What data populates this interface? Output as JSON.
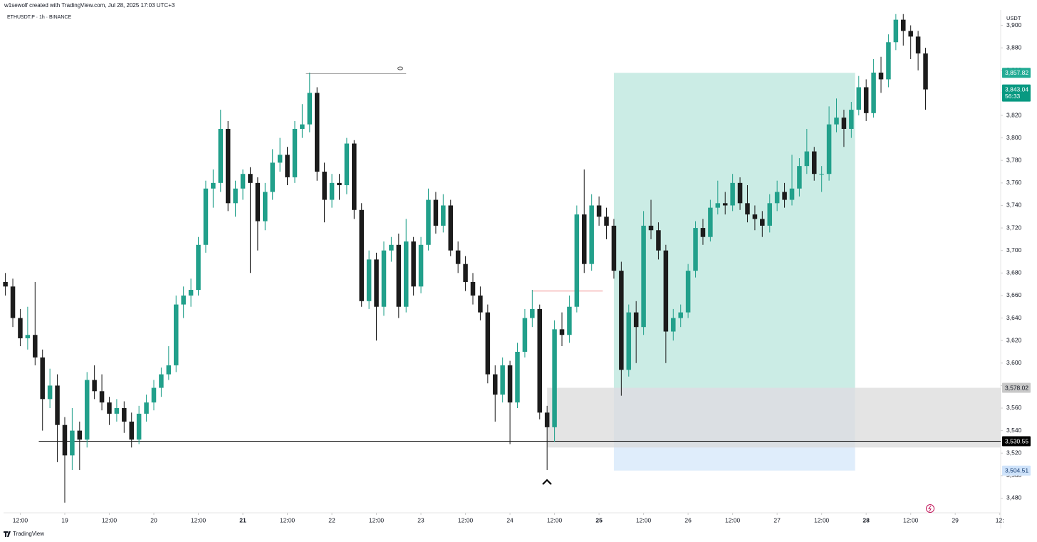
{
  "chart_data": {
    "type": "candlestick",
    "credit": "w1sewolf created with TradingView.com, Jul 28, 2025 17:03 UTC+3",
    "title": "ETHUSDT.P · 1h · BINANCE",
    "currency": "USDT",
    "brand": "TradingView",
    "up_color": "#22a08b",
    "down_color": "#1c1c1c",
    "grid": false,
    "x": [
      "18 08:00",
      "18 10:00",
      "18 12:00",
      "18 14:00",
      "18 16:00",
      "18 18:00",
      "18 20:00",
      "18 22:00",
      "19 00:00",
      "19 02:00",
      "19 04:00",
      "19 06:00",
      "19 08:00",
      "19 10:00",
      "19 12:00",
      "19 14:00",
      "19 16:00",
      "19 18:00",
      "19 20:00",
      "19 22:00",
      "20 00:00",
      "20 02:00",
      "20 04:00",
      "20 06:00",
      "20 08:00",
      "20 10:00",
      "20 12:00",
      "20 14:00",
      "20 16:00",
      "20 18:00",
      "20 20:00",
      "20 22:00",
      "21 00:00",
      "21 02:00",
      "21 04:00",
      "21 06:00",
      "21 08:00",
      "21 10:00",
      "21 12:00",
      "21 14:00",
      "21 16:00",
      "21 18:00",
      "21 20:00",
      "21 22:00",
      "22 00:00",
      "22 02:00",
      "22 04:00",
      "22 06:00",
      "22 08:00",
      "22 10:00",
      "22 12:00",
      "22 14:00",
      "22 16:00",
      "22 18:00",
      "22 20:00",
      "22 22:00",
      "23 00:00",
      "23 02:00",
      "23 04:00",
      "23 06:00",
      "23 08:00",
      "23 10:00",
      "23 12:00",
      "23 14:00",
      "23 16:00",
      "23 18:00",
      "23 20:00",
      "23 22:00",
      "24 00:00",
      "24 02:00",
      "24 04:00",
      "24 06:00",
      "24 08:00",
      "24 10:00",
      "24 12:00",
      "24 14:00",
      "24 16:00",
      "24 18:00",
      "24 20:00",
      "24 22:00",
      "25 00:00",
      "25 02:00",
      "25 04:00",
      "25 06:00",
      "25 08:00",
      "25 10:00",
      "25 12:00",
      "25 14:00",
      "25 16:00",
      "25 18:00",
      "25 20:00",
      "25 22:00",
      "26 00:00",
      "26 02:00",
      "26 04:00",
      "26 06:00",
      "26 08:00",
      "26 10:00",
      "26 12:00",
      "26 14:00",
      "26 16:00",
      "26 18:00",
      "26 20:00",
      "26 22:00",
      "27 00:00",
      "27 02:00",
      "27 04:00",
      "27 06:00",
      "27 08:00",
      "27 10:00",
      "27 12:00",
      "27 14:00",
      "27 16:00",
      "27 18:00",
      "27 20:00",
      "27 22:00",
      "28 00:00",
      "28 02:00",
      "28 04:00",
      "28 06:00",
      "28 08:00",
      "28 10:00",
      "28 12:00",
      "28 14:00",
      "28 16:00"
    ],
    "open": [
      3672,
      3668,
      3640,
      3622,
      3625,
      3605,
      3568,
      3580,
      3545,
      3518,
      3540,
      3532,
      3585,
      3575,
      3565,
      3555,
      3560,
      3548,
      3532,
      3555,
      3565,
      3578,
      3590,
      3598,
      3652,
      3660,
      3665,
      3705,
      3755,
      3760,
      3808,
      3742,
      3755,
      3768,
      3760,
      3726,
      3752,
      3778,
      3785,
      3765,
      3808,
      3812,
      3840,
      3770,
      3745,
      3760,
      3758,
      3795,
      3736,
      3655,
      3692,
      3650,
      3700,
      3705,
      3650,
      3708,
      3668,
      3705,
      3745,
      3722,
      3740,
      3700,
      3688,
      3672,
      3660,
      3645,
      3590,
      3572,
      3598,
      3565,
      3610,
      3640,
      3648,
      3556,
      3543,
      3630,
      3625,
      3650,
      3732,
      3688,
      3740,
      3730,
      3722,
      3682,
      3594,
      3645,
      3632,
      3722,
      3718,
      3700,
      3628,
      3640,
      3645,
      3682,
      3720,
      3712,
      3738,
      3742,
      3740,
      3760,
      3742,
      3732,
      3728,
      3722,
      3742,
      3752,
      3745,
      3755,
      3775,
      3788,
      3768,
      3768,
      3812,
      3818,
      3808,
      3825,
      3845,
      3822,
      3858,
      3852,
      3885,
      3905,
      3895,
      3890,
      3875
    ],
    "high": [
      3680,
      3675,
      3648,
      3650,
      3672,
      3612,
      3595,
      3590,
      3552,
      3560,
      3548,
      3592,
      3598,
      3590,
      3570,
      3568,
      3566,
      3556,
      3562,
      3572,
      3585,
      3596,
      3615,
      3660,
      3668,
      3675,
      3712,
      3762,
      3772,
      3825,
      3815,
      3762,
      3772,
      3774,
      3765,
      3760,
      3790,
      3800,
      3792,
      3815,
      3830,
      3858,
      3845,
      3778,
      3768,
      3768,
      3800,
      3798,
      3742,
      3700,
      3698,
      3708,
      3712,
      3715,
      3728,
      3712,
      3712,
      3755,
      3752,
      3750,
      3745,
      3708,
      3695,
      3680,
      3668,
      3652,
      3598,
      3605,
      3602,
      3618,
      3648,
      3665,
      3652,
      3562,
      3638,
      3645,
      3660,
      3740,
      3772,
      3750,
      3748,
      3738,
      3728,
      3690,
      3652,
      3655,
      3735,
      3745,
      3725,
      3705,
      3648,
      3652,
      3688,
      3726,
      3728,
      3745,
      3762,
      3752,
      3768,
      3765,
      3758,
      3740,
      3735,
      3750,
      3762,
      3760,
      3785,
      3782,
      3808,
      3792,
      3775,
      3828,
      3835,
      3825,
      3832,
      3855,
      3852,
      3870,
      3872,
      3892,
      3910,
      3910,
      3900,
      3895,
      3880
    ],
    "low": [
      3660,
      3632,
      3615,
      3612,
      3598,
      3540,
      3560,
      3512,
      3476,
      3505,
      3505,
      3525,
      3568,
      3558,
      3545,
      3548,
      3538,
      3525,
      3528,
      3548,
      3558,
      3570,
      3585,
      3592,
      3640,
      3650,
      3660,
      3698,
      3738,
      3752,
      3735,
      3730,
      3745,
      3680,
      3700,
      3718,
      3745,
      3770,
      3758,
      3760,
      3800,
      3805,
      3762,
      3725,
      3738,
      3745,
      3750,
      3728,
      3650,
      3648,
      3620,
      3642,
      3690,
      3640,
      3645,
      3660,
      3662,
      3700,
      3715,
      3716,
      3695,
      3680,
      3664,
      3652,
      3638,
      3582,
      3548,
      3565,
      3528,
      3560,
      3605,
      3632,
      3550,
      3505,
      3530,
      3615,
      3618,
      3645,
      3680,
      3682,
      3722,
      3710,
      3675,
      3571,
      3588,
      3600,
      3625,
      3710,
      3692,
      3600,
      3620,
      3632,
      3640,
      3676,
      3705,
      3708,
      3732,
      3732,
      3735,
      3736,
      3725,
      3718,
      3712,
      3716,
      3735,
      3738,
      3740,
      3748,
      3768,
      3762,
      3752,
      3762,
      3805,
      3792,
      3800,
      3820,
      3815,
      3818,
      3840,
      3845,
      3878,
      3882,
      3870,
      3860,
      3825
    ],
    "close": [
      3668,
      3640,
      3622,
      3625,
      3605,
      3568,
      3580,
      3545,
      3518,
      3540,
      3532,
      3585,
      3575,
      3565,
      3555,
      3560,
      3548,
      3532,
      3555,
      3565,
      3578,
      3590,
      3598,
      3652,
      3660,
      3665,
      3705,
      3755,
      3760,
      3808,
      3742,
      3755,
      3768,
      3760,
      3726,
      3752,
      3778,
      3785,
      3765,
      3808,
      3812,
      3840,
      3770,
      3745,
      3760,
      3758,
      3795,
      3736,
      3655,
      3692,
      3650,
      3700,
      3705,
      3650,
      3708,
      3668,
      3705,
      3745,
      3722,
      3740,
      3700,
      3688,
      3672,
      3660,
      3645,
      3590,
      3572,
      3598,
      3565,
      3610,
      3640,
      3648,
      3556,
      3543,
      3630,
      3625,
      3650,
      3732,
      3688,
      3740,
      3730,
      3722,
      3682,
      3594,
      3645,
      3632,
      3722,
      3718,
      3700,
      3628,
      3640,
      3645,
      3682,
      3720,
      3712,
      3738,
      3742,
      3740,
      3760,
      3742,
      3732,
      3728,
      3722,
      3742,
      3752,
      3745,
      3755,
      3775,
      3788,
      3768,
      3768,
      3812,
      3818,
      3808,
      3825,
      3845,
      3822,
      3858,
      3852,
      3885,
      3905,
      3895,
      3890,
      3875,
      3843.04
    ],
    "last_price_label": "3,843.04",
    "countdown": "56:33",
    "last_price_color": "#089981",
    "xlim": [
      "18 07:30",
      "29 12:15"
    ],
    "ylim": [
      3467,
      3913
    ],
    "xticks": [
      {
        "value": "18 12:00",
        "label": "12:00"
      },
      {
        "value": "19 00:00",
        "label": "19"
      },
      {
        "value": "19 12:00",
        "label": "12:00"
      },
      {
        "value": "20 00:00",
        "label": "20"
      },
      {
        "value": "20 12:00",
        "label": "12:00"
      },
      {
        "value": "21 00:00",
        "label": "21",
        "bold": true
      },
      {
        "value": "21 12:00",
        "label": "12:00"
      },
      {
        "value": "22 00:00",
        "label": "22"
      },
      {
        "value": "22 12:00",
        "label": "12:00"
      },
      {
        "value": "23 00:00",
        "label": "23"
      },
      {
        "value": "23 12:00",
        "label": "12:00"
      },
      {
        "value": "24 00:00",
        "label": "24"
      },
      {
        "value": "24 12:00",
        "label": "12:00"
      },
      {
        "value": "25 00:00",
        "label": "25",
        "bold": true
      },
      {
        "value": "25 12:00",
        "label": "12:00"
      },
      {
        "value": "26 00:00",
        "label": "26"
      },
      {
        "value": "26 12:00",
        "label": "12:00"
      },
      {
        "value": "27 00:00",
        "label": "27"
      },
      {
        "value": "27 12:00",
        "label": "12:00"
      },
      {
        "value": "28 00:00",
        "label": "28",
        "bold": true
      },
      {
        "value": "28 12:00",
        "label": "12:00"
      },
      {
        "value": "29 00:00",
        "label": "29"
      },
      {
        "value": "29 12:00",
        "label": "12:"
      }
    ],
    "yticks": [
      {
        "value": 3480,
        "label": "3,480"
      },
      {
        "value": 3500,
        "label": "3,500"
      },
      {
        "value": 3520,
        "label": "3,520"
      },
      {
        "value": 3540,
        "label": "3,540"
      },
      {
        "value": 3560,
        "label": "3,560"
      },
      {
        "value": 3580,
        "label": "3,580"
      },
      {
        "value": 3600,
        "label": "3,600"
      },
      {
        "value": 3620,
        "label": "3,620"
      },
      {
        "value": 3640,
        "label": "3,640"
      },
      {
        "value": 3660,
        "label": "3,660"
      },
      {
        "value": 3680,
        "label": "3,680"
      },
      {
        "value": 3700,
        "label": "3,700"
      },
      {
        "value": 3720,
        "label": "3,720"
      },
      {
        "value": 3740,
        "label": "3,740"
      },
      {
        "value": 3760,
        "label": "3,760"
      },
      {
        "value": 3780,
        "label": "3,780"
      },
      {
        "value": 3800,
        "label": "3,800"
      },
      {
        "value": 3820,
        "label": "3,820"
      },
      {
        "value": 3840,
        "label": "3,840"
      },
      {
        "value": 3860,
        "label": "3,860"
      },
      {
        "value": 3880,
        "label": "3,880"
      },
      {
        "value": 3900,
        "label": "3,900"
      }
    ],
    "rectangle": {
      "start": "24 10:00",
      "top": {
        "value": 3578.02,
        "label": "3,578.02"
      },
      "bottom": 3525,
      "color": "#d9d9d9",
      "label_color": "#c8c8c8"
    },
    "position": {
      "start": "25 04:00",
      "end": "27 21:00",
      "target": {
        "value": 3857.82,
        "label": "3,857.82"
      },
      "stop": {
        "value": 3504.51,
        "label": "3,504.51"
      },
      "profit_color": "#b9e6dc",
      "loss_color": "#dcebfb",
      "target_label_color": "#22ab94",
      "stop_label_color": "#cfe3fa"
    },
    "hline": {
      "start": "18 17:00",
      "value": 3530.55,
      "label": "3,530.55",
      "color": "#000000"
    },
    "segments": [
      {
        "start": "21 17:00",
        "end": "22 20:00",
        "value": 3857,
        "color": "#9a9a9a"
      },
      {
        "start": "24 06:00",
        "end": "25 01:00",
        "value": 3664,
        "color": "#f08c8c"
      }
    ]
  }
}
